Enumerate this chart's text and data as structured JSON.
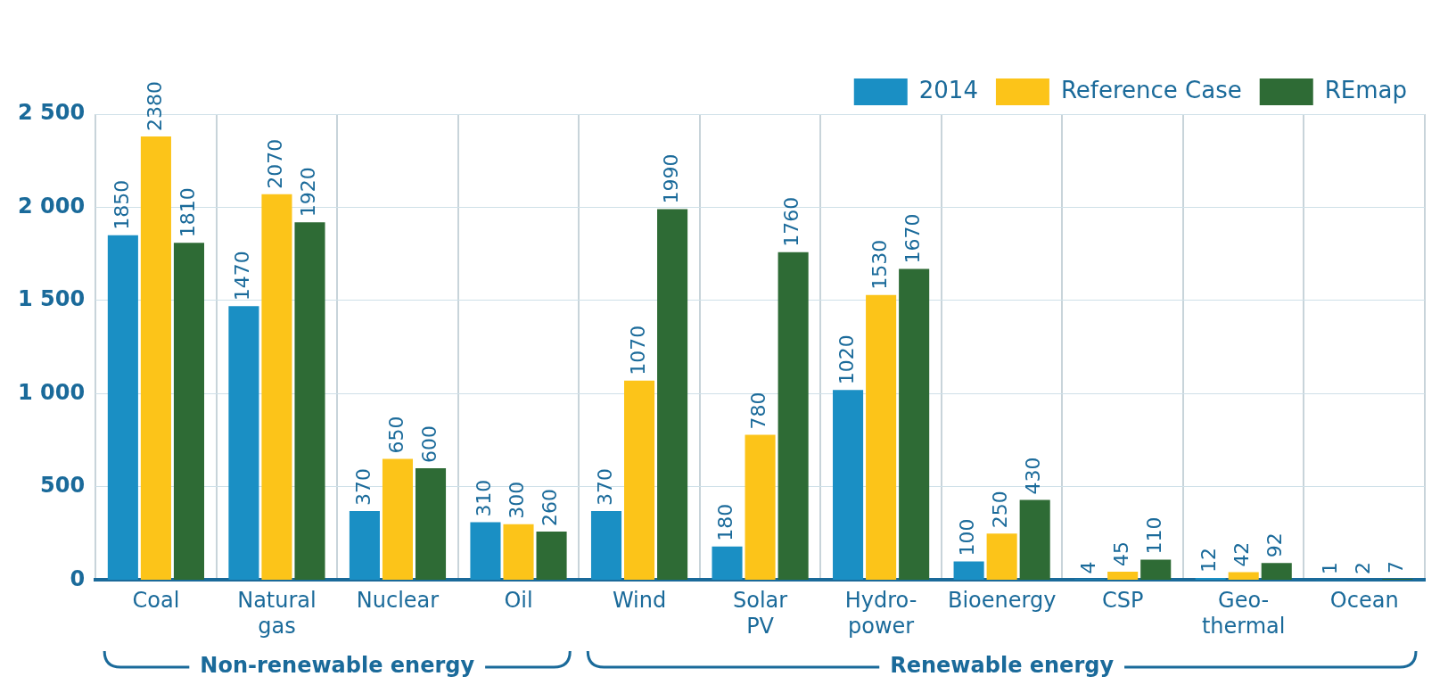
{
  "chart_data": {
    "type": "bar",
    "categories": [
      "Coal",
      "Natural gas",
      "Nuclear",
      "Oil",
      "Wind",
      "Solar PV",
      "Hydro-power",
      "Bioenergy",
      "CSP",
      "Geo-thermal",
      "Ocean"
    ],
    "series": [
      {
        "name": "2014",
        "color": "#1a8fc4",
        "values": [
          1850,
          1470,
          370,
          310,
          370,
          180,
          1020,
          100,
          4,
          12,
          1
        ]
      },
      {
        "name": "Reference Case",
        "color": "#fcc419",
        "values": [
          2380,
          2070,
          650,
          300,
          1070,
          780,
          1530,
          250,
          45,
          42,
          2
        ]
      },
      {
        "name": "REmap",
        "color": "#2e6b35",
        "values": [
          1810,
          1920,
          600,
          260,
          1990,
          1760,
          1670,
          430,
          110,
          92,
          7
        ]
      }
    ],
    "ylim": [
      0,
      2500
    ],
    "yticks": [
      0,
      500,
      {
        "value": 1000,
        "label": "1 000"
      },
      {
        "value": 1500,
        "label": "1 500"
      },
      {
        "value": 2000,
        "label": "2 000"
      },
      {
        "value": 2500,
        "label": "2 500"
      }
    ],
    "grid": true,
    "legend": "top right",
    "data_labels": true,
    "annotations": [
      "Non-renewable energy",
      "Renewable energy"
    ]
  }
}
